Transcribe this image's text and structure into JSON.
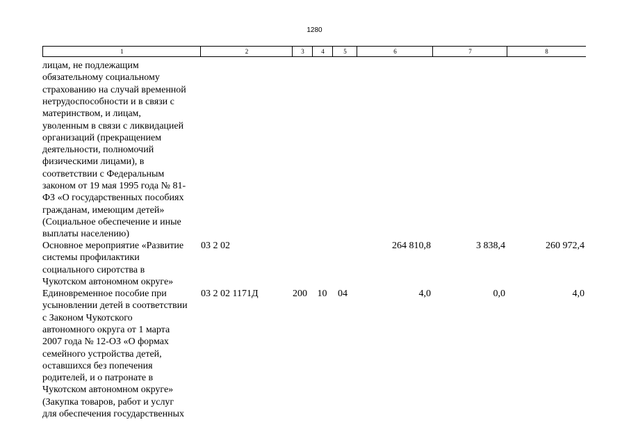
{
  "page_number": "1280",
  "header": {
    "columns": [
      "1",
      "2",
      "3",
      "4",
      "5",
      "6",
      "7",
      "8"
    ]
  },
  "rows": [
    {
      "name": [
        "лицам, не подлежащим",
        "обязательному социальному",
        "страхованию на случай временной",
        "нетрудоспособности и в связи с",
        "материнством, и лицам,",
        "уволенным в связи с ликвидацией",
        "организаций (прекращением",
        "деятельности, полномочий",
        "физическими лицами), в",
        "соответствии с Федеральным",
        "законом от 19 мая 1995 года № 81-",
        "ФЗ «О государственных пособиях",
        "гражданам, имеющим детей»",
        "(Социальное обеспечение и иные",
        "выплаты населению)"
      ]
    },
    {
      "name": [
        "Основное мероприятие «Развитие",
        "системы профилактики",
        "социального сиротства в",
        "Чукотском автономном округе»"
      ],
      "code": "03 2 02",
      "col6": "264 810,8",
      "col7": "3 838,4",
      "col8": "260 972,4"
    },
    {
      "name": [
        "Единовременное пособие при",
        "усыновлении детей в соответствии",
        "с Законом Чукотского",
        "автономного округа от 1 марта",
        "2007 года № 12-ОЗ «О формах",
        "семейного устройства детей,",
        "оставшихся без попечения",
        "родителей, и о патронате в",
        "Чукотском автономном округе»",
        "(Закупка товаров, работ и услуг",
        "для обеспечения государственных"
      ],
      "code": "03 2 02 1171Д",
      "col3": "200",
      "col4": "10",
      "col5": "04",
      "col6": "4,0",
      "col7": "0,0",
      "col8": "4,0"
    }
  ]
}
